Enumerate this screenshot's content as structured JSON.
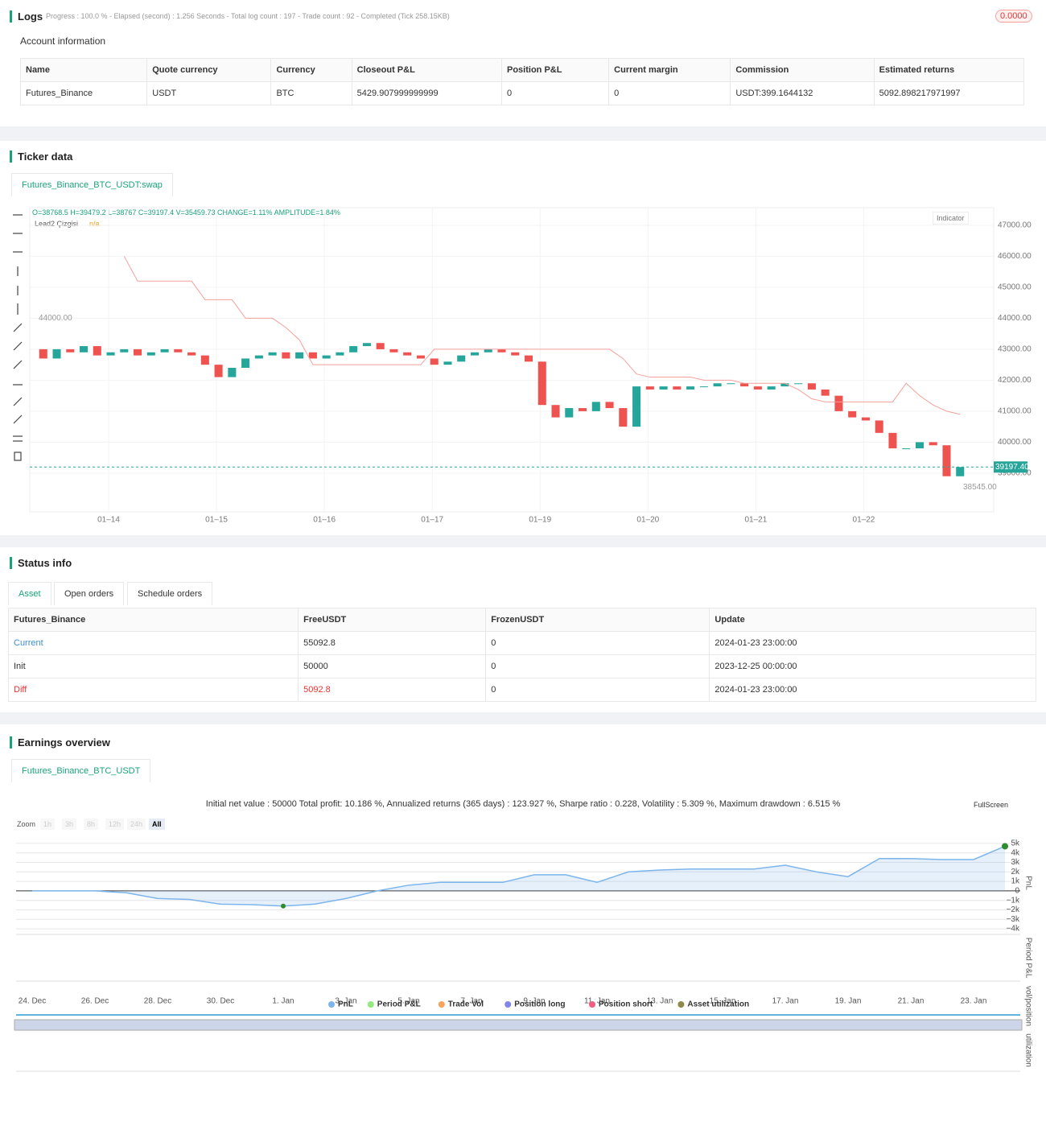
{
  "logs": {
    "title": "Logs",
    "progress": "Progress : 100.0 % - Elapsed (second) : 1.256  Seconds - Total log count : 197 - Trade count : 92 - Completed (Tick 258.15KB)",
    "badge": "0.0000"
  },
  "account": {
    "title": "Account information",
    "columns": [
      "Name",
      "Quote currency",
      "Currency",
      "Closeout P&L",
      "Position P&L",
      "Current margin",
      "Commission",
      "Estimated returns"
    ],
    "rows": [
      [
        "Futures_Binance",
        "USDT",
        "BTC",
        "5429.907999999999",
        "0",
        "0",
        "USDT:399.1644132",
        "5092.898217971997"
      ]
    ]
  },
  "ticker": {
    "title": "Ticker data",
    "tab": "Futures_Binance_BTC_USDT:swap",
    "ohlc": "O=38768.5 H=39479.2 L=38767 C=39197.4 V=35459.73 CHANGE=1.11% AMPLITUDE=1.84%",
    "legend_name": "Lead2 Çizgisi",
    "legend_value": "n/a",
    "indicator": "Indicator",
    "last_label": "39197.40",
    "chart_data": {
      "type": "candlestick",
      "xlim": [
        0,
        70
      ],
      "xticks": [
        {
          "value": 5.85,
          "label": "01–14"
        },
        {
          "value": 13.85,
          "label": "01–15"
        },
        {
          "value": 21.85,
          "label": "01–16"
        },
        {
          "value": 29.85,
          "label": "01–17"
        },
        {
          "value": 37.85,
          "label": "01–19"
        },
        {
          "value": 45.85,
          "label": "01–20"
        },
        {
          "value": 53.85,
          "label": "01–21"
        },
        {
          "value": 61.85,
          "label": "01–22"
        }
      ],
      "ylim": [
        37750,
        47570
      ],
      "yticks": [
        {
          "value": 39000,
          "label": "39000.00"
        },
        {
          "value": 40000,
          "label": "40000.00"
        },
        {
          "value": 41000,
          "label": "41000.00"
        },
        {
          "value": 42000,
          "label": "42000.00"
        },
        {
          "value": 43000,
          "label": "43000.00"
        },
        {
          "value": 44000,
          "label": "44000.00"
        },
        {
          "value": 45000,
          "label": "45000.00"
        },
        {
          "value": 46000,
          "label": "46000.00"
        },
        {
          "value": 47000,
          "label": "47000.00"
        }
      ],
      "up_color": "#26a69a",
      "down_color": "#ef5350",
      "close": [
        43000,
        42700,
        43000,
        42900,
        43100,
        42800,
        42900,
        43000,
        42800,
        42900,
        43000,
        42900,
        42800,
        42500,
        42100,
        42400,
        42700,
        42800,
        42900,
        42700,
        42900,
        42700,
        42800,
        42900,
        43100,
        43200,
        43000,
        42900,
        42800,
        42700,
        42500,
        42600,
        42800,
        42900,
        43000,
        42900,
        42800,
        42600,
        41200,
        40800,
        41100,
        41000,
        41300,
        41100,
        40500,
        41800,
        41700,
        41800,
        41700,
        41800,
        41800,
        41900,
        41900,
        41800,
        41700,
        41800,
        41900,
        41900,
        41700,
        41500,
        41000,
        40800,
        40700,
        40300,
        39800,
        39800,
        40000,
        39900,
        38900,
        39197.4
      ],
      "lead2": {
        "color": "#f4a09a",
        "values": [
          null,
          null,
          null,
          null,
          null,
          null,
          null,
          46000,
          45200,
          45200,
          45200,
          45200,
          45200,
          44600,
          44600,
          44600,
          44000,
          44000,
          44000,
          43700,
          43300,
          42500,
          42500,
          42500,
          42500,
          42500,
          42500,
          42500,
          42500,
          42500,
          43000,
          43000,
          43000,
          43000,
          43000,
          43000,
          43000,
          43000,
          43000,
          43000,
          43000,
          43000,
          43000,
          43000,
          42700,
          42200,
          42100,
          42100,
          42100,
          42100,
          42000,
          42000,
          42000,
          41900,
          41900,
          41900,
          41900,
          41700,
          41400,
          41300,
          41300,
          41300,
          41300,
          41300,
          41300,
          41900,
          41500,
          41200,
          41000,
          40900
        ]
      },
      "high_label": {
        "value": 44000,
        "label": "44000.00"
      },
      "low_label": {
        "value": 38545,
        "label": "38545.00"
      }
    }
  },
  "status": {
    "title": "Status info",
    "tabs": [
      "Asset",
      "Open orders",
      "Schedule orders"
    ],
    "columns": [
      "Futures_Binance",
      "FreeUSDT",
      "FrozenUSDT",
      "Update"
    ],
    "rows": [
      [
        "Current",
        "55092.8",
        "0",
        "2024-01-23 23:00:00"
      ],
      [
        "Init",
        "50000",
        "0",
        "2023-12-25 00:00:00"
      ],
      [
        "Diff",
        "5092.8",
        "0",
        "2024-01-23 23:00:00"
      ]
    ]
  },
  "earnings": {
    "title": "Earnings overview",
    "tab": "Futures_Binance_BTC_USDT",
    "summary": "Initial net value : 50000 Total profit: 10.186 %, Annualized returns (365 days) : 123.927 %, Sharpe ratio : 0.228, Volatility : 5.309 %, Maximum drawdown : 6.515 %",
    "fullscreen": "FullScreen",
    "zoom": "Zoom",
    "zoom_buttons": [
      "1h",
      "3h",
      "8h",
      "12h",
      "24h",
      "All"
    ],
    "panel_titles": [
      "PnL",
      "Period P&L",
      "vol/position",
      "utilization"
    ],
    "chart_data": {
      "type": "line",
      "xlim": [
        0,
        31
      ],
      "xticks": [
        {
          "value": 0,
          "label": "24. Dec"
        },
        {
          "value": 2,
          "label": "26. Dec"
        },
        {
          "value": 4,
          "label": "28. Dec"
        },
        {
          "value": 6,
          "label": "30. Dec"
        },
        {
          "value": 8,
          "label": "1. Jan"
        },
        {
          "value": 10,
          "label": "3. Jan"
        },
        {
          "value": 12,
          "label": "5. Jan"
        },
        {
          "value": 14,
          "label": "7. Jan"
        },
        {
          "value": 16,
          "label": "9. Jan"
        },
        {
          "value": 18,
          "label": "11. Jan"
        },
        {
          "value": 20,
          "label": "13. Jan"
        },
        {
          "value": 22,
          "label": "15. Jan"
        },
        {
          "value": 24,
          "label": "17. Jan"
        },
        {
          "value": 26,
          "label": "19. Jan"
        },
        {
          "value": 28,
          "label": "21. Jan"
        },
        {
          "value": 30,
          "label": "23. Jan"
        }
      ],
      "ylim": [
        -4500,
        5500
      ],
      "yticks": [
        {
          "value": 5000,
          "label": "5k"
        },
        {
          "value": 4000,
          "label": "4k"
        },
        {
          "value": 3000,
          "label": "3k"
        },
        {
          "value": 2000,
          "label": "2k"
        },
        {
          "value": 1000,
          "label": "1k"
        },
        0,
        {
          "value": -1000,
          "label": "−1k"
        },
        {
          "value": -2000,
          "label": "−2k"
        },
        {
          "value": -3000,
          "label": "−3k"
        },
        {
          "value": -4000,
          "label": "−4k"
        }
      ],
      "series": [
        {
          "name": "PnL",
          "color": "#7cb5ec",
          "values": [
            0,
            0,
            0,
            -200,
            -800,
            -900,
            -1400,
            -1450,
            -1600,
            -1400,
            -800,
            0,
            600,
            900,
            900,
            900,
            1700,
            1700,
            900,
            2000,
            2200,
            2300,
            2300,
            2300,
            2700,
            2000,
            1500,
            3400,
            3400,
            3300,
            3300,
            4700
          ]
        },
        {
          "name": "Period P&L",
          "color": "#90ed7d",
          "values": []
        },
        {
          "name": "Trade Vol",
          "color": "#f7a35c",
          "values": []
        },
        {
          "name": "Position long",
          "color": "#8085e9",
          "values": []
        },
        {
          "name": "Position short",
          "color": "#f15c80",
          "values": []
        },
        {
          "name": "Asset utilization",
          "color": "#8d8a4a",
          "values": []
        }
      ]
    }
  }
}
